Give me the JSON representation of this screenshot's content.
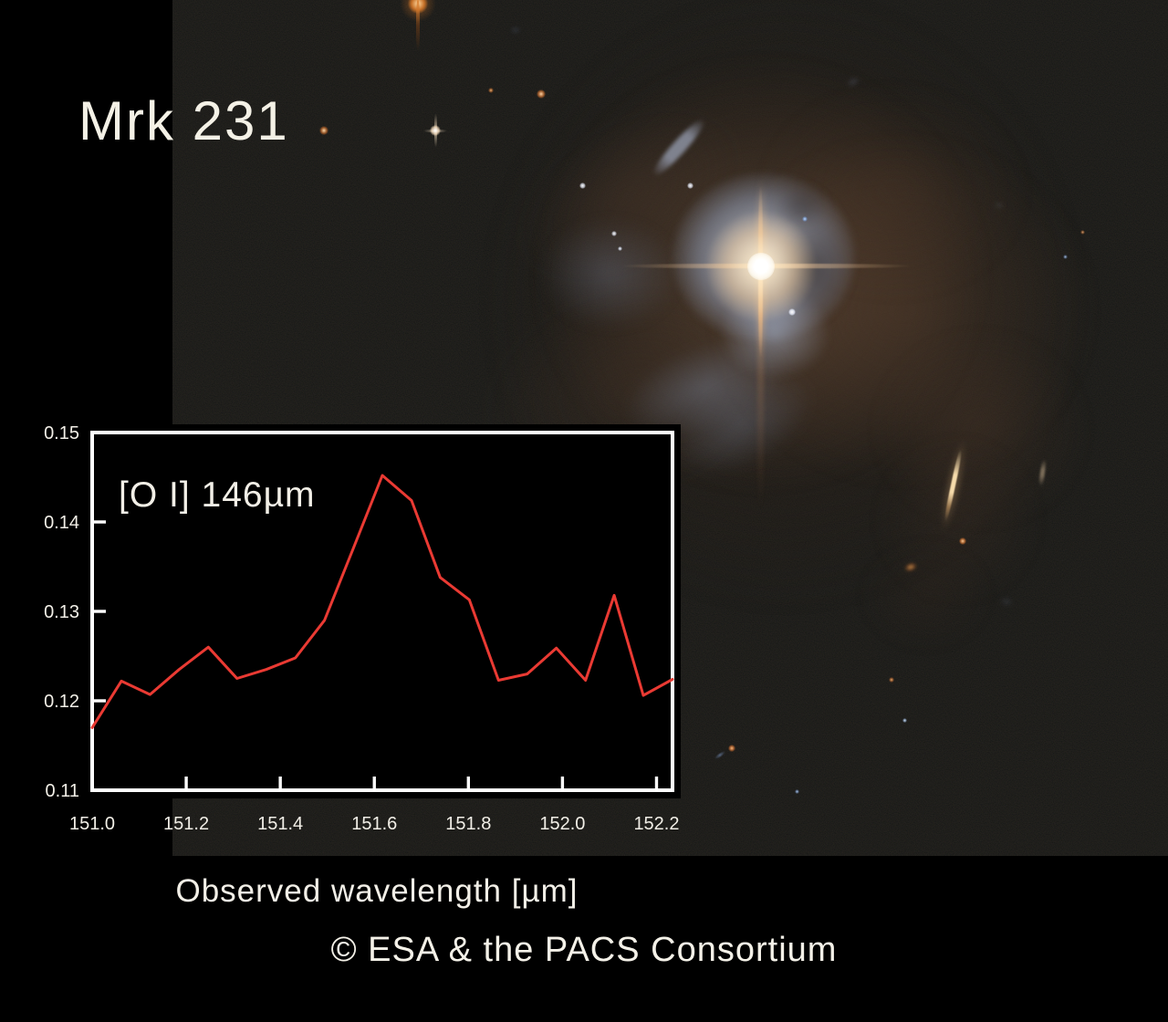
{
  "title": "Mrk 231",
  "caption": "© ESA & the PACS Consortium",
  "colors": {
    "background": "#000000",
    "axis": "#ffffff",
    "text": "#f2efe7",
    "line": "#ea3a33"
  },
  "chart_data": {
    "type": "line",
    "series_label": "[O I] 146µm",
    "xlabel": "Observed wavelength [µm]",
    "ylabel": "",
    "xlim": [
      151.0,
      152.234
    ],
    "ylim": [
      0.11,
      0.15
    ],
    "grid": false,
    "legend": null,
    "x_ticks": [
      151.0,
      151.2,
      151.4,
      151.6,
      151.8,
      152.0,
      152.2
    ],
    "x_tick_labels": [
      "151.0",
      "151.2",
      "151.4",
      "151.6",
      "151.8",
      "152.0",
      "152.2"
    ],
    "y_ticks": [
      0.11,
      0.12,
      0.13,
      0.14,
      0.15
    ],
    "y_tick_labels": [
      "0.11",
      "0.12",
      "0.13",
      "0.14",
      "0.15"
    ],
    "x": [
      151.0,
      151.062,
      151.123,
      151.185,
      151.247,
      151.308,
      151.37,
      151.432,
      151.494,
      151.555,
      151.617,
      151.679,
      151.74,
      151.802,
      151.864,
      151.925,
      151.987,
      152.049,
      152.11,
      152.172,
      152.234
    ],
    "values": [
      0.117,
      0.1222,
      0.1207,
      0.1235,
      0.126,
      0.1225,
      0.1235,
      0.1248,
      0.129,
      0.137,
      0.1452,
      0.1424,
      0.1338,
      0.1313,
      0.1223,
      0.123,
      0.1259,
      0.1223,
      0.1318,
      0.1206,
      0.1224
    ],
    "line_color": "#ea3a33",
    "axis_color": "#ffffff"
  }
}
